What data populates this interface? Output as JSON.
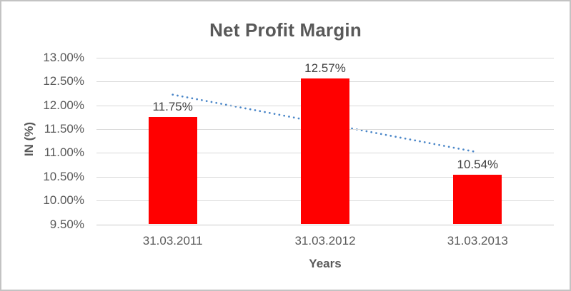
{
  "chart_data": {
    "type": "bar",
    "title": "Net Profit Margin",
    "categories": [
      "31.03.2011",
      "31.03.2012",
      "31.03.2013"
    ],
    "values": [
      11.75,
      12.57,
      10.54
    ],
    "data_labels": [
      "11.75%",
      "12.57%",
      "10.54%"
    ],
    "xlabel": "Years",
    "ylabel": "IN (%)",
    "ylim": [
      9.5,
      13.0
    ],
    "ytick_step": 0.5,
    "ytick_labels": [
      "13.00%",
      "12.50%",
      "12.00%",
      "11.50%",
      "11.00%",
      "10.50%",
      "10.00%",
      "9.50%"
    ],
    "grid": true,
    "legend": "none",
    "bar_color": "#ff0000",
    "trendline": {
      "type": "linear",
      "style": "dotted",
      "color": "#4a86c8"
    },
    "colors": {
      "title_text": "#595959",
      "axis_text": "#595959",
      "data_label_text": "#404040",
      "gridline": "#d9d9d9",
      "axis_line": "#c9c9c9",
      "frame_border": "#c3c3c3",
      "background": "#ffffff"
    }
  }
}
